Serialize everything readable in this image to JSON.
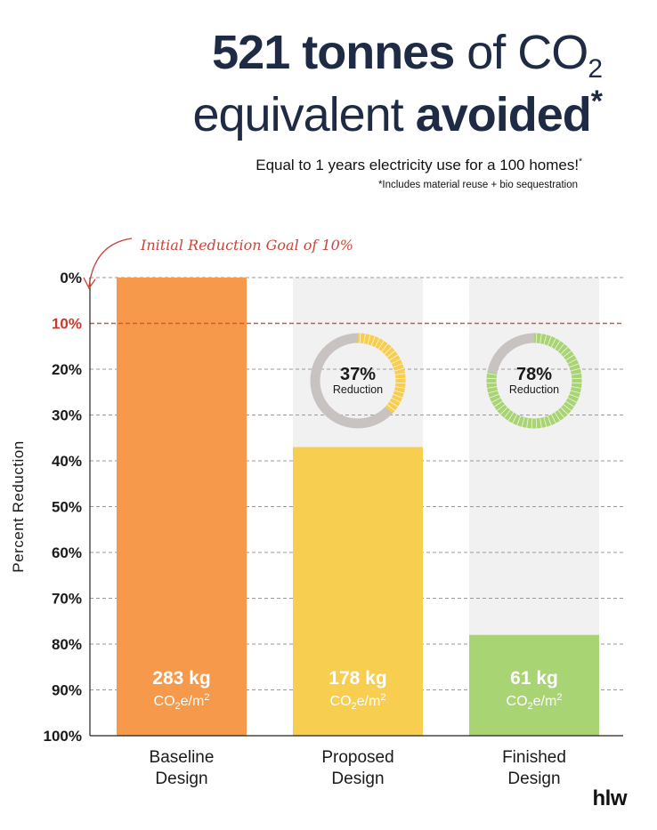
{
  "header": {
    "amount": "521 tonnes",
    "of_text": "of CO",
    "co2_subscript": "2",
    "line2_light": "equivalent",
    "line2_bold": "avoided",
    "asterisk": "*",
    "subtitle": "Equal to 1 years electricity use for a 100 homes!",
    "subtitle_marker": "*",
    "footnote": "*Includes material reuse + bio sequestration"
  },
  "logo": "hlw",
  "colors": {
    "baseline": "#F6994A",
    "proposed": "#F8CE50",
    "finished": "#A8D474",
    "goal_line": "#D9533F",
    "track": "#F1F1F1",
    "donut_gray": "#C8C3C0",
    "text_dark": "#1F2A44"
  },
  "chart_data": {
    "type": "bar",
    "ylabel": "Percent Reduction",
    "ylim": [
      0,
      100
    ],
    "yaxis_inverted": true,
    "y_ticks": [
      "0%",
      "10%",
      "20%",
      "30%",
      "40%",
      "50%",
      "60%",
      "70%",
      "80%",
      "90%",
      "100%"
    ],
    "categories": [
      "Baseline\nDesign",
      "Proposed\nDesign",
      "Finished\nDesign"
    ],
    "reduction_percent": [
      0,
      37,
      78
    ],
    "embodied_carbon_kg": [
      "283 kg",
      "178 kg",
      "61 kg"
    ],
    "unit_base": "CO",
    "unit_sub": "2",
    "unit_tail": "e/m",
    "unit_sup": "2",
    "goal": {
      "value": 10,
      "label": "Initial Reduction Goal of 10%"
    },
    "donuts": [
      {
        "category_index": 1,
        "value": 37,
        "label": "37%",
        "caption": "Reduction"
      },
      {
        "category_index": 2,
        "value": 78,
        "label": "78%",
        "caption": "Reduction"
      }
    ],
    "grid": true
  }
}
